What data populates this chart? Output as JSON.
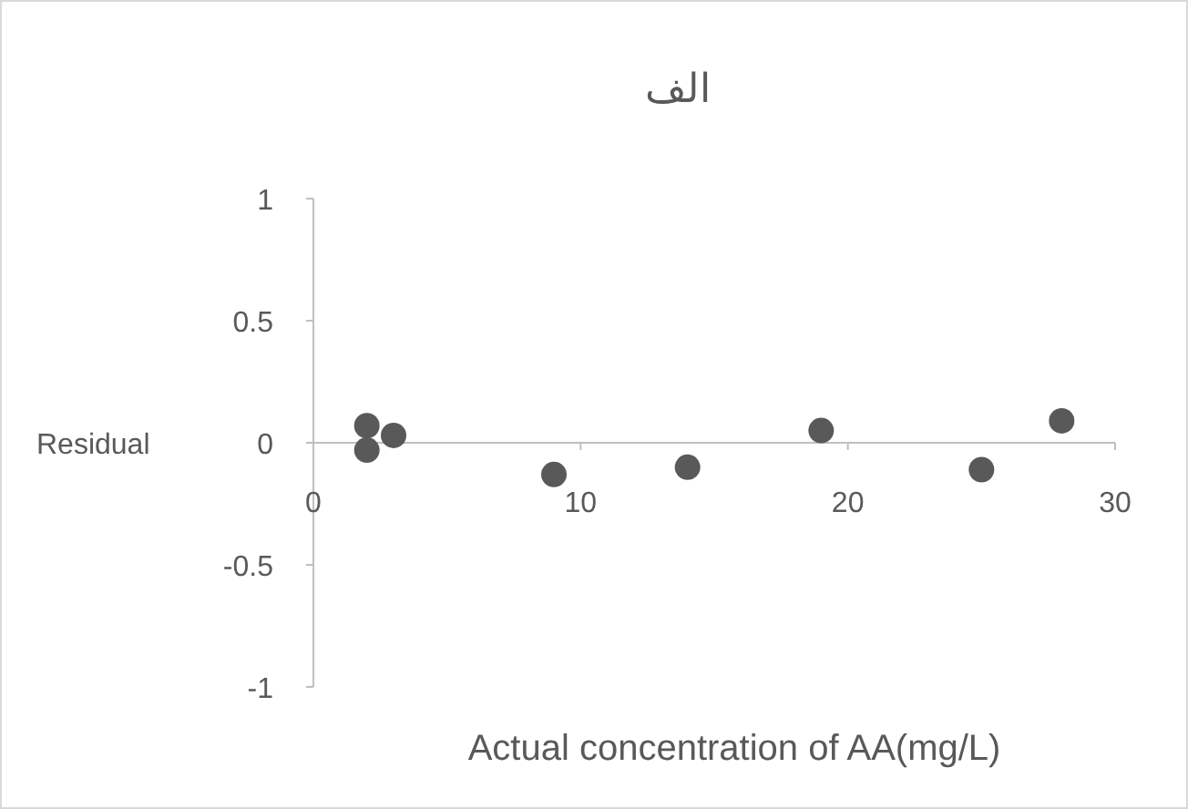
{
  "chart_data": {
    "type": "scatter",
    "title": "الف",
    "xlabel": "Actual concentration of AA(mg/L)",
    "ylabel": "Residual",
    "x": [
      2,
      2,
      3,
      9,
      14,
      19,
      25,
      28
    ],
    "series": [
      {
        "color": "#595959",
        "values": [
          0.07,
          -0.03,
          0.03,
          -0.13,
          -0.1,
          0.05,
          -0.11,
          0.09
        ]
      }
    ],
    "xlim": [
      0,
      30
    ],
    "xticks": [
      0,
      10,
      20,
      30
    ],
    "ylim": [
      -1,
      1
    ],
    "yticks": [
      -1,
      -0.5,
      0,
      0.5,
      1
    ],
    "grid": false,
    "marker": "circle"
  }
}
